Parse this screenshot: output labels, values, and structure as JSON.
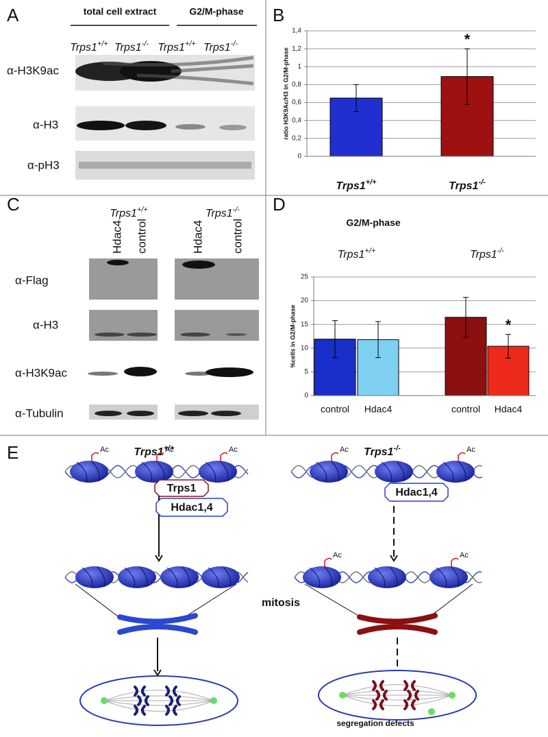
{
  "panel_letters": [
    "A",
    "B",
    "C",
    "D",
    "E"
  ],
  "panel_a": {
    "headers": [
      "total cell extract",
      "G2/M-phase"
    ],
    "genotypes": [
      {
        "text": "Trps1",
        "sup": "+/+"
      },
      {
        "text": "Trps1",
        "sup": "-/-"
      },
      {
        "text": "Trps1",
        "sup": "+/+"
      },
      {
        "text": "Trps1",
        "sup": "-/-"
      }
    ],
    "blots": [
      "α-H3K9ac",
      "α-H3",
      "α-pH3"
    ]
  },
  "chart_data": [
    {
      "type": "bar",
      "ylabel": "ratio H3K9Ac/H3 in G2/M-phase",
      "categories": [
        "Trps1",
        "Trps1"
      ],
      "category_superscripts": [
        "+/+",
        "-/-"
      ],
      "values": [
        0.65,
        0.89
      ],
      "errors": [
        0.15,
        0.31
      ],
      "colors": [
        "#1f2fd0",
        "#9e1111"
      ],
      "annotations": [
        null,
        "*"
      ],
      "ylim": [
        0,
        1.4
      ],
      "yticks": [
        0,
        {
          "value": 0.2,
          "label": "0,2"
        },
        {
          "value": 0.4,
          "label": "0,4"
        },
        {
          "value": 0.6,
          "label": "0,6"
        },
        {
          "value": 0.8,
          "label": "0,8"
        },
        1,
        {
          "value": 1.2,
          "label": "1,2"
        },
        {
          "value": 1.4,
          "label": "1,4"
        }
      ],
      "grid": true
    },
    {
      "type": "bar",
      "title": "G2/M-phase",
      "ylabel": "%cells in G2/M-phase",
      "groups": [
        {
          "text": "Trps1",
          "sup": "+/+"
        },
        {
          "text": "Trps1",
          "sup": "-/-"
        }
      ],
      "categories": [
        "control",
        "Hdac4",
        "control",
        "Hdac4"
      ],
      "values": [
        11.9,
        11.8,
        16.5,
        10.4
      ],
      "errors": [
        3.9,
        3.8,
        4.2,
        2.5
      ],
      "colors": [
        "#1a2ec9",
        "#7fd0f0",
        "#8b1010",
        "#ee2a1a"
      ],
      "annotations": [
        null,
        null,
        null,
        "*"
      ],
      "ylim": [
        0,
        25
      ],
      "yticks": [
        0,
        5,
        10,
        15,
        20,
        25
      ],
      "grid": true
    }
  ],
  "panel_c": {
    "genotypes": [
      {
        "text": "Trps1",
        "sup": "+/+"
      },
      {
        "text": "Trps1",
        "sup": "-/-"
      }
    ],
    "lanes": [
      "Hdac4",
      "control",
      "Hdac4",
      "control"
    ],
    "blots": [
      "α-Flag",
      "α-H3",
      "α-H3K9ac",
      "α-Tubulin"
    ]
  },
  "panel_e": {
    "genotypes": [
      {
        "text": "Trps1",
        "sup": "+/+"
      },
      {
        "text": "Trps1",
        "sup": "-/-"
      }
    ],
    "factors_left": [
      "Trps1",
      "Hdac1,4"
    ],
    "factors_right": [
      "Hdac1,4"
    ],
    "acetyl": "Ac",
    "process": "mitosis",
    "outcome": "segregation defects"
  }
}
